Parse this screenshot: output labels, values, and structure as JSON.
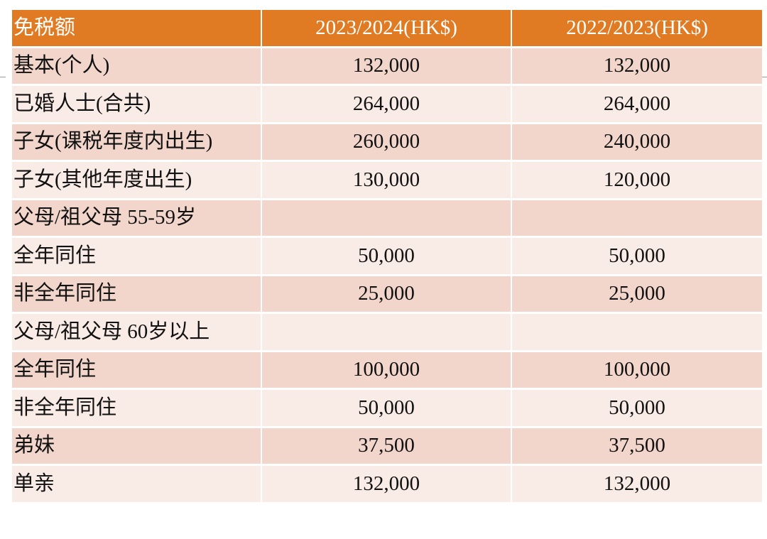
{
  "table": {
    "headers": [
      "免税额",
      "2023/2024(HK$)",
      "2022/2023(HK$)"
    ],
    "rows": [
      {
        "label": "基本(个人)",
        "v2023": "132,000",
        "v2022": "132,000"
      },
      {
        "label": "已婚人士(合共)",
        "v2023": "264,000",
        "v2022": "264,000"
      },
      {
        "label": "子女(课税年度内出生)",
        "v2023": "260,000",
        "v2022": "240,000"
      },
      {
        "label": "子女(其他年度出生)",
        "v2023": "130,000",
        "v2022": "120,000"
      },
      {
        "label": "父母/祖父母 55-59岁",
        "v2023": "",
        "v2022": ""
      },
      {
        "label": "全年同住",
        "v2023": "50,000",
        "v2022": "50,000"
      },
      {
        "label": "非全年同住",
        "v2023": "25,000",
        "v2022": "25,000"
      },
      {
        "label": "父母/祖父母 60岁以上",
        "v2023": "",
        "v2022": ""
      },
      {
        "label": "全年同住",
        "v2023": "100,000",
        "v2022": "100,000"
      },
      {
        "label": "非全年同住",
        "v2023": "50,000",
        "v2022": "50,000"
      },
      {
        "label": "弟妹",
        "v2023": "37,500",
        "v2022": "37,500"
      },
      {
        "label": "单亲",
        "v2023": "132,000",
        "v2022": "132,000"
      }
    ]
  },
  "colors": {
    "header": "#e07a23",
    "row_dark": "#f3d6cb",
    "row_light": "#f9ebe5"
  }
}
